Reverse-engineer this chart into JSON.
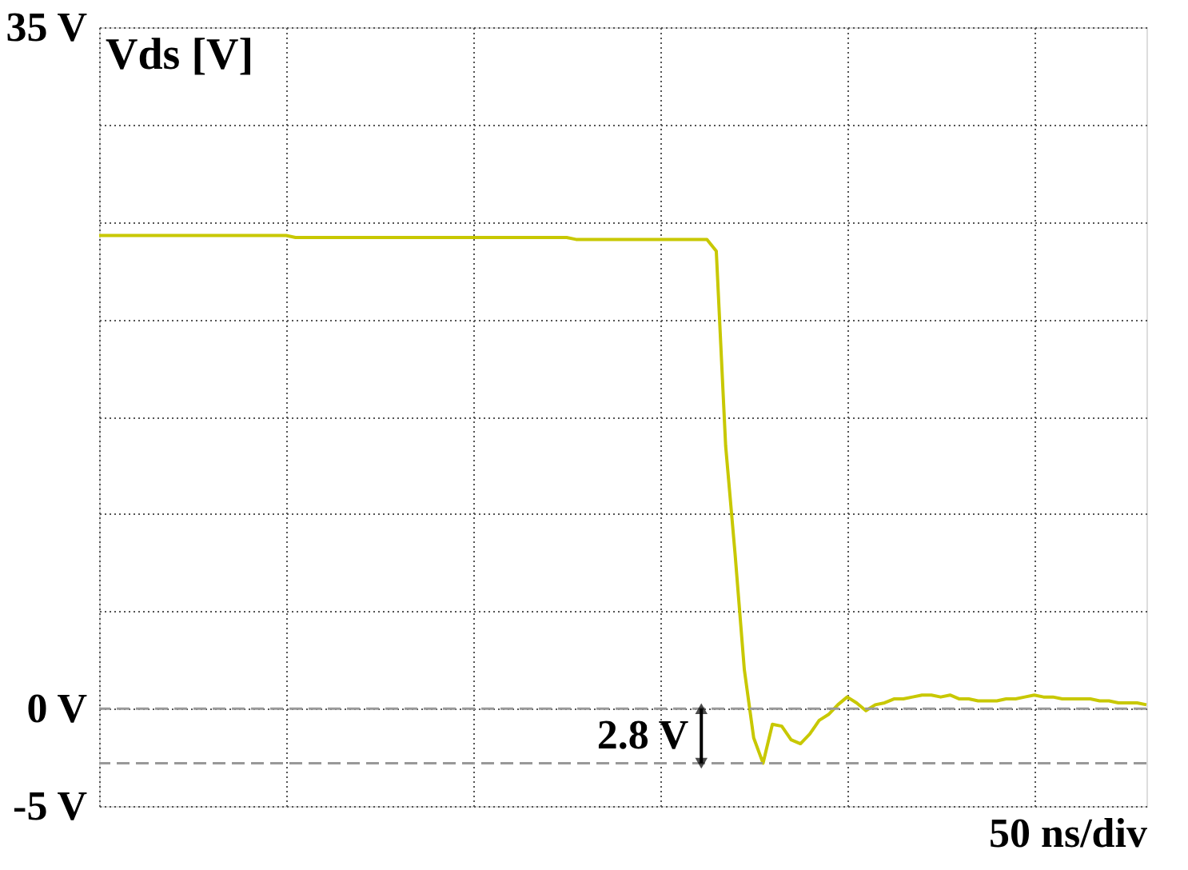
{
  "chart_data": {
    "type": "line",
    "ylabel": "Vds [V]",
    "xlabel": "50 ns/div",
    "categories": [
      null,
      null,
      null,
      null,
      null,
      null,
      null,
      null,
      null,
      null,
      null,
      null,
      null,
      null,
      null,
      null,
      null,
      null,
      null,
      null,
      null,
      null,
      null,
      null,
      null,
      null,
      null,
      null,
      null,
      null,
      null,
      null,
      null,
      null,
      null,
      null,
      null,
      null,
      null,
      null,
      null,
      null,
      null,
      null,
      null,
      null,
      null,
      null,
      null,
      null,
      null,
      null,
      null,
      null,
      null,
      null,
      null,
      null,
      null,
      null,
      null,
      null,
      null,
      null,
      null,
      null,
      null,
      null,
      null,
      null,
      null,
      null,
      null,
      null,
      null,
      null,
      null,
      null,
      null,
      null,
      null,
      null,
      null,
      null,
      null,
      null,
      null,
      null,
      null,
      null,
      null,
      null,
      null,
      null,
      null,
      null,
      null,
      null,
      null,
      null,
      null,
      null,
      null,
      null,
      null,
      null,
      null,
      null,
      null,
      null,
      null,
      null,
      null
    ],
    "series": [
      {
        "color": "#c8c800",
        "values": [
          24.3,
          24.3,
          24.3,
          24.3,
          24.3,
          24.3,
          24.3,
          24.3,
          24.3,
          24.3,
          24.3,
          24.3,
          24.3,
          24.3,
          24.3,
          24.3,
          24.3,
          24.3,
          24.3,
          24.3,
          24.3,
          24.2,
          24.2,
          24.2,
          24.2,
          24.2,
          24.2,
          24.2,
          24.2,
          24.2,
          24.2,
          24.2,
          24.2,
          24.2,
          24.2,
          24.2,
          24.2,
          24.2,
          24.2,
          24.2,
          24.2,
          24.2,
          24.2,
          24.2,
          24.2,
          24.2,
          24.2,
          24.2,
          24.2,
          24.2,
          24.2,
          24.1,
          24.1,
          24.1,
          24.1,
          24.1,
          24.1,
          24.1,
          24.1,
          24.1,
          24.1,
          24.1,
          24.1,
          24.1,
          24.1,
          24.1,
          23.5,
          13.5,
          8.0,
          2.0,
          -1.5,
          -2.8,
          -0.8,
          -0.9,
          -1.6,
          -1.8,
          -1.3,
          -0.6,
          -0.3,
          0.2,
          0.6,
          0.3,
          -0.1,
          0.2,
          0.3,
          0.5,
          0.5,
          0.6,
          0.7,
          0.7,
          0.6,
          0.7,
          0.5,
          0.5,
          0.4,
          0.4,
          0.4,
          0.5,
          0.5,
          0.6,
          0.7,
          0.6,
          0.6,
          0.5,
          0.5,
          0.5,
          0.5,
          0.4,
          0.4,
          0.3,
          0.3,
          0.3,
          0.2
        ]
      }
    ],
    "ylim": [
      -5,
      35
    ],
    "yticks": [
      {
        "value": 35,
        "label": "35 V"
      },
      {
        "value": 30,
        "label": null
      },
      {
        "value": 25,
        "label": null
      },
      {
        "value": 20,
        "label": null
      },
      {
        "value": 15,
        "label": null
      },
      {
        "value": 10,
        "label": null
      },
      {
        "value": 5,
        "label": null
      },
      {
        "value": 0,
        "label": "0 V"
      },
      {
        "value": -5,
        "label": "-5 V"
      }
    ],
    "grid": true,
    "ref_lines": [
      {
        "axis": "y",
        "value": 0,
        "color": "#999999",
        "line_style": "dashed"
      },
      {
        "axis": "y",
        "value": -2.8,
        "color": "#999999",
        "line_style": "dashed"
      }
    ],
    "annotations": [
      "2.8 V"
    ]
  }
}
